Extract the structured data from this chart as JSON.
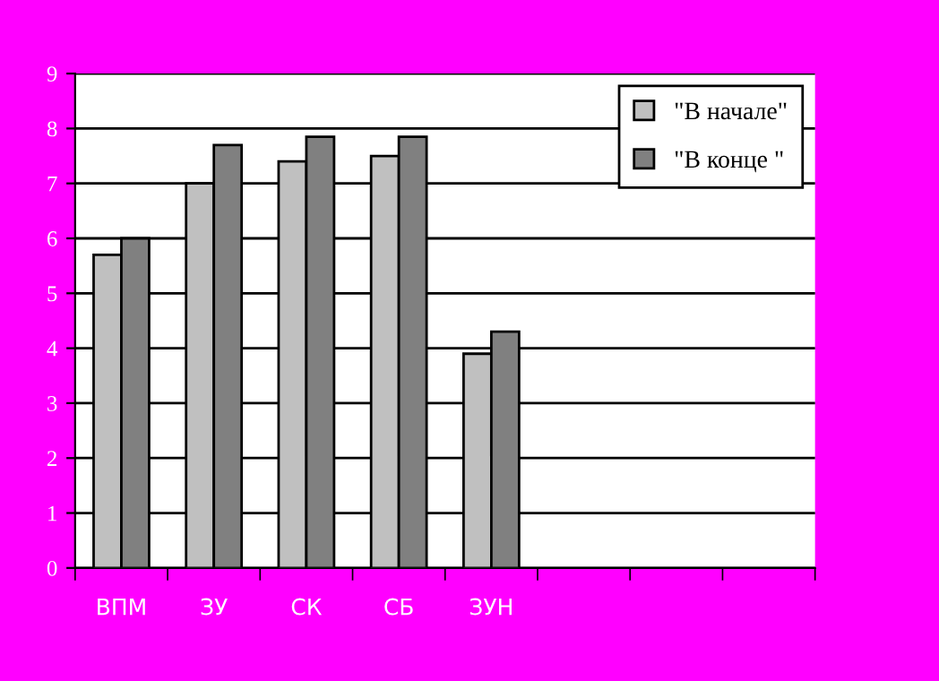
{
  "chart_data": {
    "type": "bar",
    "categories": [
      "ВПМ",
      "ЗУ",
      "СК",
      "СБ",
      "ЗУН",
      null,
      null,
      null
    ],
    "series": [
      {
        "name": "\"В начале\"",
        "color": "#c0c0c0",
        "values": [
          5.7,
          7.0,
          7.4,
          7.5,
          3.9,
          null,
          null,
          null
        ]
      },
      {
        "name": "\"В конце \"",
        "color": "#808080",
        "values": [
          6.0,
          7.7,
          7.85,
          7.85,
          4.3,
          null,
          null,
          null
        ]
      }
    ],
    "ylim": [
      0,
      9
    ],
    "yticks": [
      0,
      1,
      2,
      3,
      4,
      5,
      6,
      7,
      8,
      9
    ],
    "grid": "y",
    "legend": "top right"
  }
}
